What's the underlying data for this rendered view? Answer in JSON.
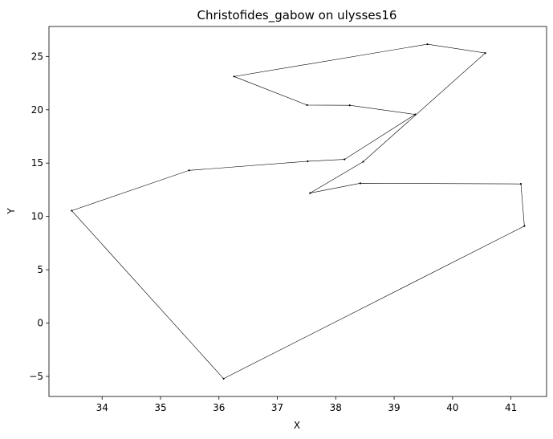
{
  "chart_data": {
    "type": "line",
    "title": "Christofides_gabow on ulysses16",
    "xlabel": "X",
    "ylabel": "Y",
    "xlim": [
      33.09,
      41.61
    ],
    "ylim": [
      -6.88,
      27.81
    ],
    "xticks": [
      34,
      35,
      36,
      37,
      38,
      39,
      40,
      41
    ],
    "yticks": [
      -5,
      0,
      5,
      10,
      15,
      20,
      25
    ],
    "grid": false,
    "legend": "none",
    "series": [
      {
        "closed": true,
        "marker": "dot",
        "color": "#000000",
        "points": [
          {
            "x": 39.36,
            "y": 19.56
          },
          {
            "x": 38.24,
            "y": 20.42
          },
          {
            "x": 37.51,
            "y": 20.44
          },
          {
            "x": 36.26,
            "y": 23.12
          },
          {
            "x": 39.57,
            "y": 26.15
          },
          {
            "x": 40.56,
            "y": 25.32
          },
          {
            "x": 38.47,
            "y": 15.13
          },
          {
            "x": 37.56,
            "y": 12.19
          },
          {
            "x": 38.42,
            "y": 13.11
          },
          {
            "x": 41.17,
            "y": 13.05
          },
          {
            "x": 41.23,
            "y": 9.1
          },
          {
            "x": 36.08,
            "y": -5.21
          },
          {
            "x": 33.48,
            "y": 10.54
          },
          {
            "x": 35.49,
            "y": 14.32
          },
          {
            "x": 37.52,
            "y": 15.17
          },
          {
            "x": 38.15,
            "y": 15.35
          }
        ]
      }
    ]
  }
}
